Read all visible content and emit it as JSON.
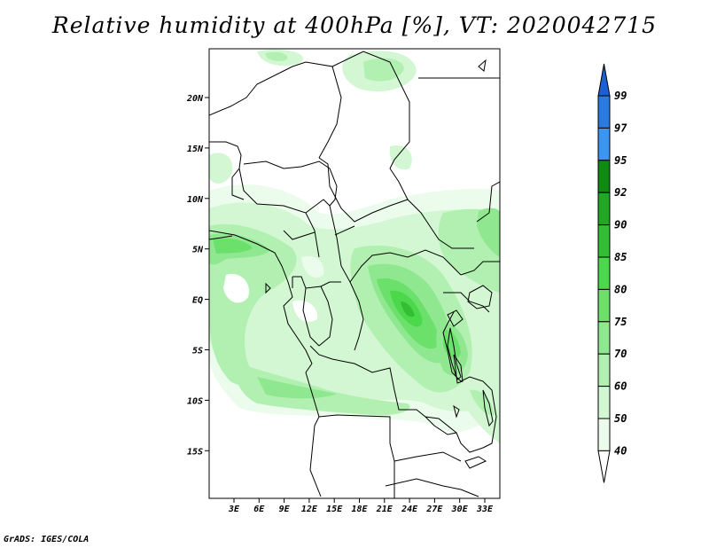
{
  "title": "Relative humidity at 400hPa [%], VT: 2020042715",
  "footer": "GrADS: IGES/COLA",
  "lat_labels": [
    "20N",
    "15N",
    "10N",
    "5N",
    "EQ",
    "5S",
    "10S",
    "15S"
  ],
  "lon_labels": [
    "3E",
    "6E",
    "9E",
    "12E",
    "15E",
    "18E",
    "21E",
    "24E",
    "27E",
    "30E",
    "33E"
  ],
  "colorbar": {
    "labels": [
      "99",
      "97",
      "95",
      "92",
      "90",
      "85",
      "80",
      "75",
      "70",
      "60",
      "50",
      "40"
    ],
    "colors": [
      "#1c5fd0",
      "#2a7be0",
      "#3a96ee",
      "#0f8a12",
      "#22a722",
      "#33be33",
      "#4bd84b",
      "#6be06b",
      "#8fe88f",
      "#b2f0b2",
      "#d2f7d2",
      "#ecfcec"
    ]
  },
  "map": {
    "lat_range": [
      -19.5,
      25
    ],
    "lon_range": [
      0,
      35
    ],
    "variable": "Relative humidity",
    "level": "400hPa",
    "units": "%"
  }
}
